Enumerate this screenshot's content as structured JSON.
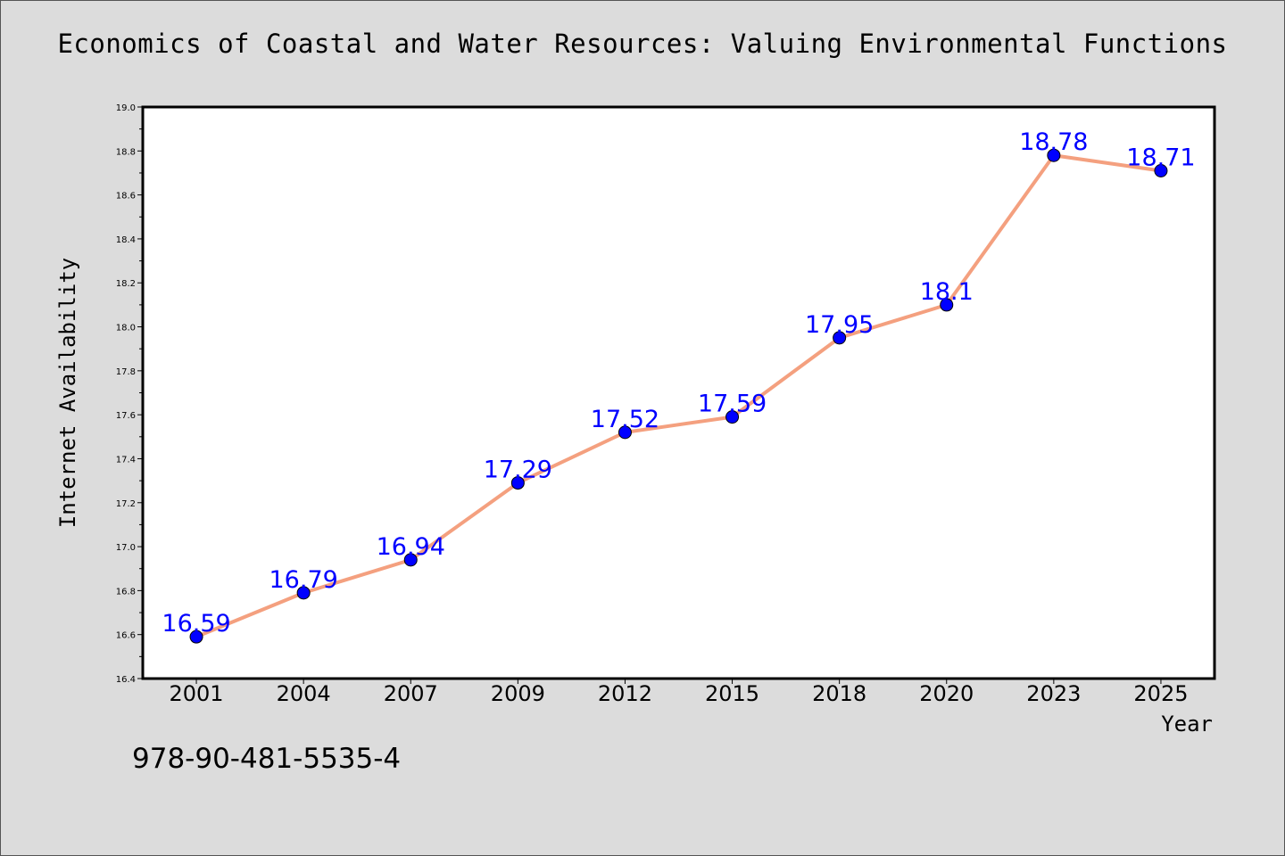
{
  "chart_data": {
    "type": "line",
    "title": "Economics of Coastal and Water Resources: Valuing Environmental Functions",
    "xlabel": "Year",
    "ylabel": "Internet Availability",
    "categories": [
      "2001",
      "2004",
      "2007",
      "2009",
      "2012",
      "2015",
      "2018",
      "2020",
      "2023",
      "2025"
    ],
    "values": [
      16.59,
      16.79,
      16.94,
      17.29,
      17.52,
      17.59,
      17.95,
      18.1,
      18.78,
      18.71
    ],
    "data_labels": [
      "16.59",
      "16.79",
      "16.94",
      "17.29",
      "17.52",
      "17.59",
      "17.95",
      "18.1",
      "18.78",
      "18.71"
    ],
    "ylim": [
      16.4,
      19.0
    ],
    "yticks": [
      "16.4",
      "16.6",
      "16.8",
      "17.0",
      "17.2",
      "17.4",
      "17.6",
      "17.8",
      "18.0",
      "18.2",
      "18.4",
      "18.6",
      "18.8",
      "19.0"
    ],
    "grid": false,
    "colors": {
      "line": "#f4a07f",
      "marker": "#0000ff",
      "label": "#0000ff",
      "plot_bg": "#ffffff",
      "page_bg": "#dcdcdc"
    }
  },
  "footer": {
    "isbn": "978-90-481-5535-4"
  }
}
